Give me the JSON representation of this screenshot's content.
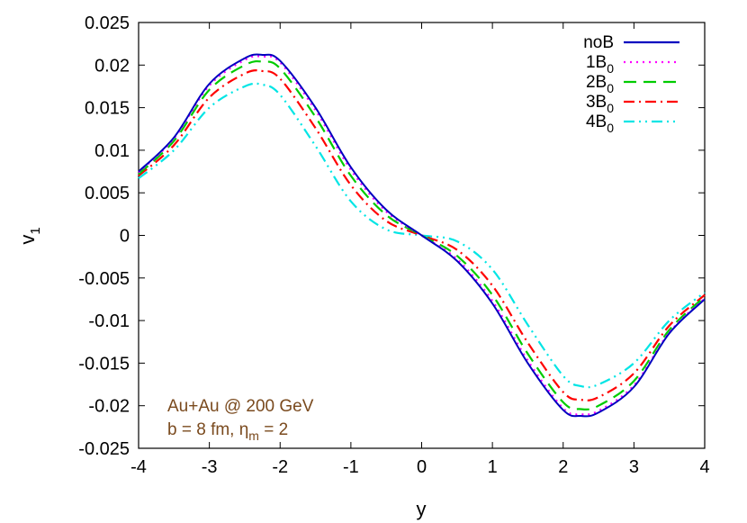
{
  "chart_data": {
    "type": "line",
    "xlabel": "y",
    "ylabel_base": "v",
    "ylabel_sub": "1",
    "xlim": [
      -4,
      4
    ],
    "ylim": [
      -0.025,
      0.025
    ],
    "xticks": [
      -4,
      -3,
      -2,
      -1,
      0,
      1,
      2,
      3,
      4
    ],
    "xtick_labels": [
      "-4",
      "-3",
      "-2",
      "-1",
      "0",
      "1",
      "2",
      "3",
      "4"
    ],
    "yticks": [
      -0.025,
      -0.02,
      -0.015,
      -0.01,
      -0.005,
      0,
      0.005,
      0.01,
      0.015,
      0.02,
      0.025
    ],
    "ytick_labels": [
      "-0.025",
      "-0.02",
      "-0.015",
      "-0.01",
      "-0.005",
      "0",
      "0.005",
      "0.01",
      "0.015",
      "0.02",
      "0.025"
    ],
    "grid": false,
    "legend_position": "top-right",
    "x": [
      -4.0,
      -3.5,
      -3.0,
      -2.5,
      -2.25,
      -2.0,
      -1.5,
      -1.0,
      -0.5,
      0.0,
      0.5,
      1.0,
      1.5,
      2.0,
      2.25,
      2.5,
      3.0,
      3.5,
      4.0
    ],
    "series": [
      {
        "name_base": "noB",
        "name_sub": "",
        "color": "#0000c0",
        "dash": "",
        "values": [
          0.0075,
          0.0115,
          0.0178,
          0.0208,
          0.0212,
          0.0205,
          0.015,
          0.008,
          0.003,
          0.0,
          -0.003,
          -0.008,
          -0.015,
          -0.0205,
          -0.0212,
          -0.0208,
          -0.0178,
          -0.0115,
          -0.0075
        ]
      },
      {
        "name_base": "1B",
        "name_sub": "0",
        "color": "#ff00ff",
        "dash": "2,5",
        "values": [
          0.0074,
          0.0114,
          0.0176,
          0.0206,
          0.021,
          0.0203,
          0.0147,
          0.0077,
          0.0028,
          0.0,
          -0.0028,
          -0.0077,
          -0.0147,
          -0.0203,
          -0.021,
          -0.0206,
          -0.0176,
          -0.0114,
          -0.0074
        ]
      },
      {
        "name_base": "2B",
        "name_sub": "0",
        "color": "#00cc00",
        "dash": "14,8",
        "values": [
          0.0072,
          0.0111,
          0.0171,
          0.02,
          0.0204,
          0.0196,
          0.0139,
          0.007,
          0.0024,
          0.0,
          -0.0024,
          -0.007,
          -0.0139,
          -0.0196,
          -0.0204,
          -0.02,
          -0.0171,
          -0.0111,
          -0.0072
        ]
      },
      {
        "name_base": "3B",
        "name_sub": "0",
        "color": "#ff0000",
        "dash": "12,5,2,5",
        "values": [
          0.007,
          0.0106,
          0.0162,
          0.019,
          0.0193,
          0.0184,
          0.0126,
          0.0059,
          0.0017,
          0.0,
          -0.0017,
          -0.0059,
          -0.0126,
          -0.0184,
          -0.0193,
          -0.019,
          -0.0162,
          -0.0106,
          -0.007
        ]
      },
      {
        "name_base": "4B",
        "name_sub": "0",
        "color": "#00e5e5",
        "dash": "12,5,2,5,2,5",
        "values": [
          0.0067,
          0.01,
          0.015,
          0.0175,
          0.0177,
          0.0165,
          0.0105,
          0.004,
          0.0007,
          0.0,
          -0.0007,
          -0.004,
          -0.0105,
          -0.0165,
          -0.0177,
          -0.0175,
          -0.015,
          -0.01,
          -0.0067
        ]
      }
    ],
    "annotations": {
      "line1": "Au+Au @ 200 GeV",
      "line2_base": "b = 8 fm, η",
      "line2_sub": "m",
      "line2_tail": " = 2",
      "color": "#7a4a1e"
    }
  }
}
